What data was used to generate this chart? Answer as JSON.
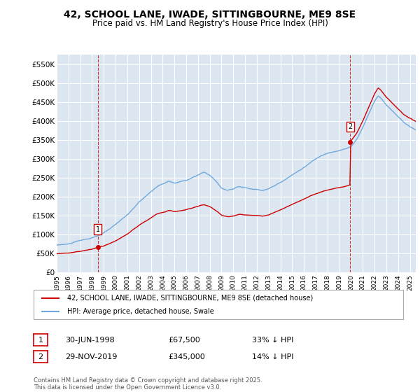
{
  "title": "42, SCHOOL LANE, IWADE, SITTINGBOURNE, ME9 8SE",
  "subtitle": "Price paid vs. HM Land Registry's House Price Index (HPI)",
  "ylim": [
    0,
    575000
  ],
  "yticks": [
    0,
    50000,
    100000,
    150000,
    200000,
    250000,
    300000,
    350000,
    400000,
    450000,
    500000,
    550000
  ],
  "ytick_labels": [
    "£0",
    "£50K",
    "£100K",
    "£150K",
    "£200K",
    "£250K",
    "£300K",
    "£350K",
    "£400K",
    "£450K",
    "£500K",
    "£550K"
  ],
  "hpi_color": "#6fa8dc",
  "price_color": "#cc0000",
  "chart_bg_color": "#dce6f1",
  "background_color": "#ffffff",
  "grid_color": "#ffffff",
  "legend_label_price": "42, SCHOOL LANE, IWADE, SITTINGBOURNE, ME9 8SE (detached house)",
  "legend_label_hpi": "HPI: Average price, detached house, Swale",
  "annotation1_date": "30-JUN-1998",
  "annotation1_price": "£67,500",
  "annotation1_pct": "33% ↓ HPI",
  "annotation2_date": "29-NOV-2019",
  "annotation2_price": "£345,000",
  "annotation2_pct": "14% ↓ HPI",
  "footer": "Contains HM Land Registry data © Crown copyright and database right 2025.\nThis data is licensed under the Open Government Licence v3.0.",
  "purchase1_year": 1998.5,
  "purchase1_price": 67500,
  "purchase2_year": 2019.92,
  "purchase2_price": 345000
}
